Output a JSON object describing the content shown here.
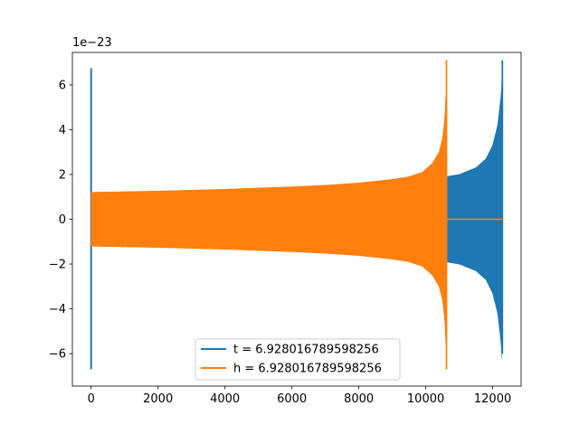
{
  "chart_data": {
    "type": "line",
    "title": "",
    "xlabel": "",
    "ylabel": "",
    "offset_text": "1e−23",
    "xlim": [
      -560,
      12850
    ],
    "ylim": [
      -7.45,
      7.45
    ],
    "xticks": [
      0,
      2000,
      4000,
      6000,
      8000,
      10000,
      12000
    ],
    "yticks": [
      -6,
      -4,
      -2,
      0,
      2,
      4,
      6
    ],
    "ytick_labels": [
      "−6",
      "−4",
      "−2",
      "0",
      "2",
      "4",
      "6"
    ],
    "grid": false,
    "legend_position": "lower center",
    "series": [
      {
        "name": "t = 6.928016789598256",
        "color": "#1f77b4",
        "description": "chirp waveform, 0 to about 12280",
        "spike": {
          "x": 0,
          "max": 6.75,
          "min": -6.7
        },
        "envelope": [
          [
            0,
            1.2
          ],
          [
            2000,
            1.25
          ],
          [
            4000,
            1.32
          ],
          [
            6000,
            1.42
          ],
          [
            8000,
            1.58
          ],
          [
            10000,
            1.84
          ],
          [
            10600,
            1.9
          ],
          [
            11000,
            2.0
          ],
          [
            11500,
            2.3
          ],
          [
            11800,
            2.7
          ],
          [
            12000,
            3.3
          ],
          [
            12150,
            4.2
          ],
          [
            12250,
            5.5
          ],
          [
            12280,
            6.2
          ]
        ],
        "end_spike": {
          "x": 12290,
          "max": 7.1,
          "min": -6.0
        }
      },
      {
        "name": "h = 6.928016789598256",
        "color": "#ff7f0e",
        "description": "chirp waveform, 0 to about 10600, then flat at 0 to 12300",
        "envelope": [
          [
            0,
            1.2
          ],
          [
            2000,
            1.26
          ],
          [
            4000,
            1.34
          ],
          [
            6000,
            1.45
          ],
          [
            7000,
            1.52
          ],
          [
            8000,
            1.62
          ],
          [
            9000,
            1.78
          ],
          [
            9500,
            1.9
          ],
          [
            9900,
            2.1
          ],
          [
            10200,
            2.5
          ],
          [
            10400,
            3.0
          ],
          [
            10500,
            3.6
          ],
          [
            10570,
            4.5
          ],
          [
            10600,
            5.5
          ],
          [
            10620,
            6.4
          ]
        ],
        "end_spike": {
          "x": 10620,
          "max": 7.1,
          "min": -6.7
        },
        "flat_until": 12300
      }
    ]
  }
}
